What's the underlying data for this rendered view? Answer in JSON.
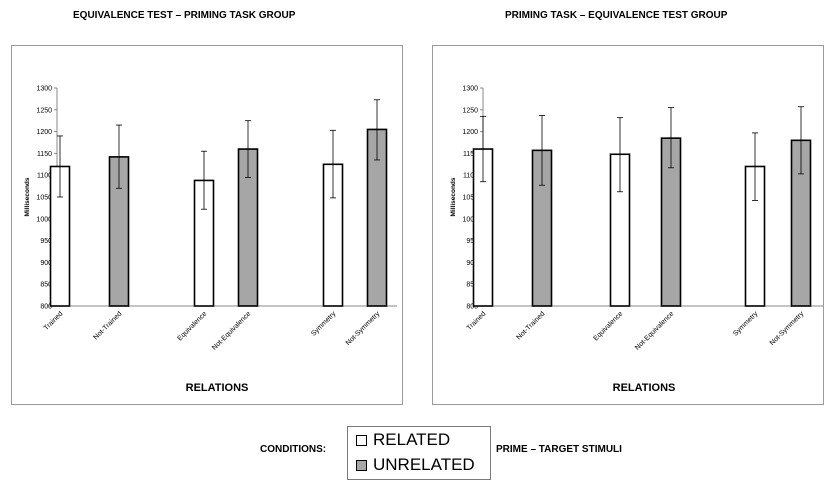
{
  "chart_data": [
    {
      "type": "bar",
      "title": "EQUIVALENCE TEST – PRIMING TASK GROUP",
      "xlabel": "RELATIONS",
      "ylabel": "Milliseconds",
      "ylim": [
        800,
        1300
      ],
      "yticks": [
        800,
        850,
        900,
        950,
        1000,
        1050,
        1100,
        1150,
        1200,
        1250,
        1300
      ],
      "grid": false,
      "categories": [
        "Trained",
        "Not-Trained",
        "Equivalence",
        "Not-Equivalence",
        "Symmetry",
        "Not-Symmetry"
      ],
      "values": [
        1120,
        1142,
        1088,
        1160,
        1125,
        1205
      ],
      "error_upper": [
        1190,
        1215,
        1155,
        1225,
        1203,
        1273
      ],
      "error_lower": [
        1050,
        1070,
        1022,
        1095,
        1048,
        1135
      ],
      "condition": [
        "RELATED",
        "UNRELATED",
        "RELATED",
        "UNRELATED",
        "RELATED",
        "UNRELATED"
      ]
    },
    {
      "type": "bar",
      "title": "PRIMING TASK – EQUIVALENCE TEST GROUP",
      "xlabel": "RELATIONS",
      "ylabel": "Milliseconds",
      "ylim": [
        800,
        1300
      ],
      "yticks": [
        800,
        850,
        900,
        950,
        1000,
        1050,
        1100,
        1150,
        1200,
        1250,
        1300
      ],
      "grid": false,
      "categories": [
        "Trained",
        "Not-Trained",
        "Equivalence",
        "Not-Equivalence",
        "Symmetry",
        "Not-Symmetry"
      ],
      "values": [
        1160,
        1157,
        1148,
        1185,
        1120,
        1180
      ],
      "error_upper": [
        1235,
        1237,
        1232,
        1255,
        1197,
        1257
      ],
      "error_lower": [
        1085,
        1077,
        1062,
        1117,
        1042,
        1103
      ],
      "condition": [
        "RELATED",
        "UNRELATED",
        "RELATED",
        "UNRELATED",
        "RELATED",
        "UNRELATED"
      ]
    }
  ],
  "legend": {
    "conditions_label": "CONDITIONS:",
    "items": [
      {
        "label": "RELATED",
        "color": "#ffffff"
      },
      {
        "label": "UNRELATED",
        "color": "#a6a6a6"
      }
    ],
    "stimuli_label": "PRIME – TARGET STIMULI"
  },
  "colors": {
    "related": "#ffffff",
    "unrelated": "#a6a6a6",
    "outline": "#000000"
  }
}
